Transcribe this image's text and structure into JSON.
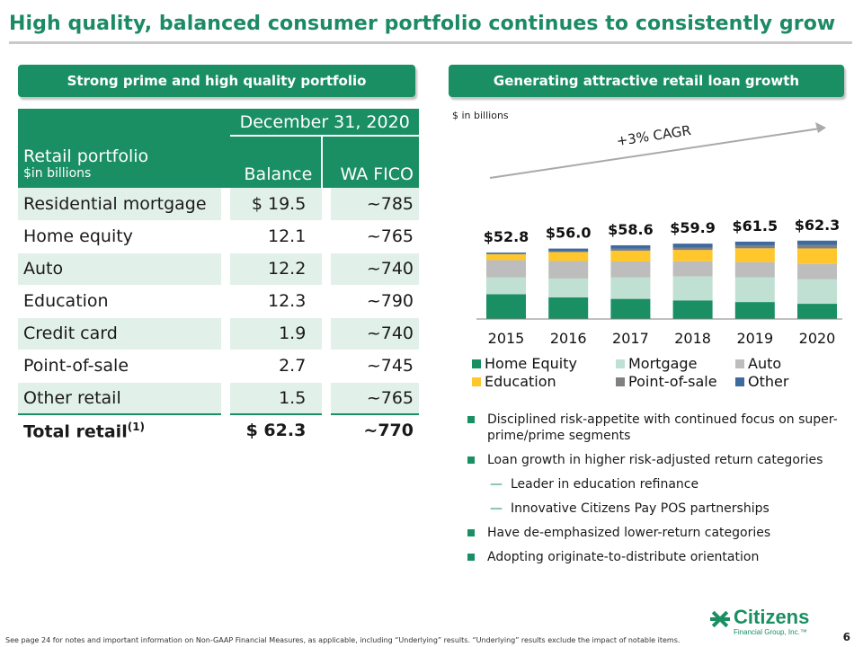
{
  "title": "High quality, balanced consumer portfolio continues to consistently grow",
  "left_panel": {
    "header": "Strong prime and high quality portfolio",
    "table": {
      "date_header": "December 31, 2020",
      "row_header_line1": "Retail portfolio",
      "row_header_line2": "$in billions",
      "col_balance": "Balance",
      "col_fico": "WA FICO",
      "rows": [
        {
          "name": "Residential mortgage",
          "balance": "$ 19.5",
          "fico": "~785"
        },
        {
          "name": "Home equity",
          "balance": "12.1",
          "fico": "~765"
        },
        {
          "name": "Auto",
          "balance": "12.2",
          "fico": "~740"
        },
        {
          "name": "Education",
          "balance": "12.3",
          "fico": "~790"
        },
        {
          "name": "Credit card",
          "balance": "1.9",
          "fico": "~740"
        },
        {
          "name": "Point-of-sale",
          "balance": "2.7",
          "fico": "~745"
        },
        {
          "name": "Other retail",
          "balance": "1.5",
          "fico": "~765"
        }
      ],
      "total": {
        "name": "Total retail",
        "superscript": "(1)",
        "balance": "$ 62.3",
        "fico": "~770"
      }
    }
  },
  "right_panel": {
    "header": "Generating attractive retail loan growth",
    "units": "$ in billions",
    "cagr": "+3% CAGR",
    "bullets": [
      {
        "level": 1,
        "text": "Disciplined risk-appetite with continued focus on super-prime/prime segments"
      },
      {
        "level": 1,
        "text": "Loan growth in higher risk-adjusted return categories"
      },
      {
        "level": 2,
        "text": "Leader in education refinance"
      },
      {
        "level": 2,
        "text": "Innovative Citizens Pay POS partnerships"
      },
      {
        "level": 1,
        "text": "Have de-emphasized lower-return categories"
      },
      {
        "level": 1,
        "text": "Adopting originate-to-distribute orientation"
      }
    ]
  },
  "chart_data": {
    "type": "bar",
    "stacked": true,
    "categories": [
      "2015",
      "2016",
      "2017",
      "2018",
      "2019",
      "2020"
    ],
    "totals": [
      "$52.8",
      "$56.0",
      "$58.6",
      "$59.9",
      "$61.5",
      "$62.3"
    ],
    "series": [
      {
        "name": "Home Equity",
        "color": "#1a8f63",
        "values": [
          19.7,
          17.2,
          16.0,
          14.8,
          13.5,
          12.1
        ]
      },
      {
        "name": "Mortgage",
        "color": "#bfe0d2",
        "values": [
          13.3,
          15.0,
          17.0,
          19.0,
          19.7,
          19.5
        ]
      },
      {
        "name": "Auto",
        "color": "#bdbdbd",
        "values": [
          13.8,
          13.9,
          12.7,
          12.1,
          12.1,
          12.2
        ]
      },
      {
        "name": "Education",
        "color": "#ffc72c",
        "values": [
          4.8,
          7.1,
          8.6,
          9.0,
          10.9,
          12.3
        ]
      },
      {
        "name": "Point-of-sale",
        "color": "#808080",
        "values": [
          0.0,
          0.5,
          1.5,
          1.9,
          2.4,
          2.7
        ]
      },
      {
        "name": "Other",
        "color": "#3e6a9e",
        "values": [
          1.2,
          2.3,
          2.8,
          3.1,
          2.9,
          3.5
        ]
      }
    ],
    "legend_position": "bottom",
    "grid": false
  },
  "footer": "See page 24 for notes and important information on  Non-GAAP Financial Measures, as applicable, including “Underlying” results. “Underlying” results exclude the impact of notable items.",
  "page_number": "6",
  "logo": {
    "name": "Citizens",
    "sub": "Financial Group, Inc.™"
  }
}
